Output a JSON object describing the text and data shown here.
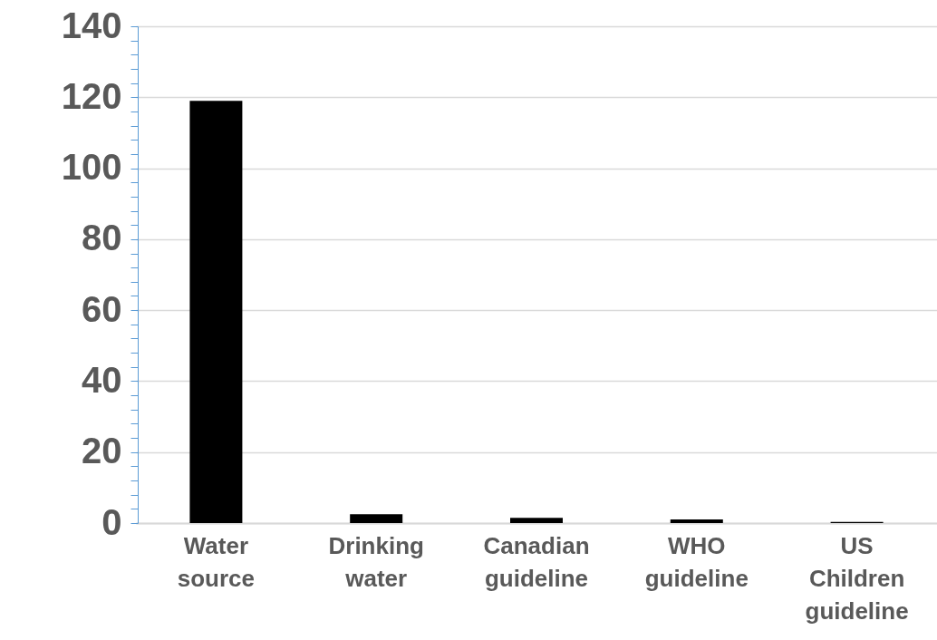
{
  "chart_data": {
    "type": "bar",
    "categories": [
      "Water source",
      "Drinking water",
      "Canadian guideline",
      "WHO guideline",
      "US Children guideline"
    ],
    "values": [
      119,
      2.5,
      1.5,
      1.0,
      0.3
    ],
    "color": "#000000",
    "ylim": [
      0,
      140
    ],
    "yticks": [
      0,
      {
        "value": 4,
        "label": null
      },
      {
        "value": 8,
        "label": null
      },
      {
        "value": 12,
        "label": null
      },
      {
        "value": 16,
        "label": null
      },
      20,
      {
        "value": 24,
        "label": null
      },
      {
        "value": 28,
        "label": null
      },
      {
        "value": 32,
        "label": null
      },
      {
        "value": 36,
        "label": null
      },
      40,
      {
        "value": 44,
        "label": null
      },
      {
        "value": 48,
        "label": null
      },
      {
        "value": 52,
        "label": null
      },
      {
        "value": 56,
        "label": null
      },
      60,
      {
        "value": 64,
        "label": null
      },
      {
        "value": 68,
        "label": null
      },
      {
        "value": 72,
        "label": null
      },
      {
        "value": 76,
        "label": null
      },
      80,
      {
        "value": 84,
        "label": null
      },
      {
        "value": 88,
        "label": null
      },
      {
        "value": 92,
        "label": null
      },
      {
        "value": 96,
        "label": null
      },
      100,
      {
        "value": 104,
        "label": null
      },
      {
        "value": 108,
        "label": null
      },
      {
        "value": 112,
        "label": null
      },
      {
        "value": 116,
        "label": null
      },
      120,
      {
        "value": 124,
        "label": null
      },
      {
        "value": 128,
        "label": null
      },
      {
        "value": 132,
        "label": null
      },
      {
        "value": 136,
        "label": null
      },
      140
    ],
    "grid": "y"
  }
}
